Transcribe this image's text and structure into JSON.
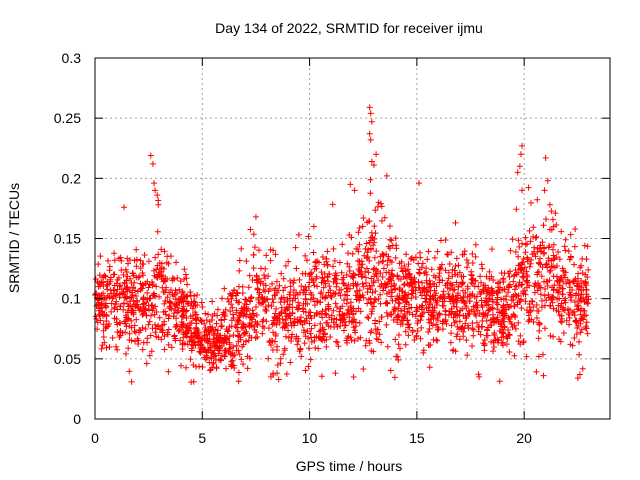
{
  "chart_data": {
    "type": "scatter",
    "title": "Day 134 of 2022, SRMTID for receiver ijmu",
    "xlabel": "GPS time / hours",
    "ylabel": "SRMTID / TECUs",
    "xlim": [
      0,
      24
    ],
    "ylim": [
      0,
      0.3
    ],
    "x_ticks": [
      0,
      5,
      10,
      15,
      20
    ],
    "y_ticks": [
      0,
      0.05,
      0.1,
      0.15,
      0.2,
      0.25,
      0.3
    ],
    "grid": true,
    "marker": "+",
    "series": [
      {
        "name": "SRMTID",
        "color": "#ff0000",
        "envelope": {
          "hours": [
            0.0,
            0.5,
            1.0,
            1.5,
            2.0,
            2.5,
            3.0,
            3.5,
            4.0,
            4.5,
            5.0,
            5.5,
            6.0,
            6.5,
            7.0,
            7.5,
            8.0,
            8.5,
            9.0,
            9.5,
            10.0,
            10.5,
            11.0,
            11.5,
            12.0,
            12.5,
            13.0,
            13.5,
            14.0,
            14.5,
            15.0,
            15.5,
            16.0,
            16.5,
            17.0,
            17.5,
            18.0,
            18.5,
            19.0,
            19.5,
            20.0,
            20.5,
            21.0,
            21.5,
            22.0,
            22.5,
            23.0
          ],
          "center": [
            0.1,
            0.095,
            0.098,
            0.097,
            0.1,
            0.095,
            0.11,
            0.09,
            0.088,
            0.078,
            0.065,
            0.062,
            0.068,
            0.075,
            0.09,
            0.1,
            0.1,
            0.08,
            0.085,
            0.09,
            0.095,
            0.092,
            0.098,
            0.095,
            0.095,
            0.11,
            0.12,
            0.11,
            0.1,
            0.095,
            0.1,
            0.1,
            0.098,
            0.098,
            0.1,
            0.098,
            0.09,
            0.09,
            0.085,
            0.105,
            0.11,
            0.115,
            0.12,
            0.11,
            0.11,
            0.095,
            0.1
          ],
          "spread": [
            0.018,
            0.022,
            0.025,
            0.025,
            0.025,
            0.025,
            0.03,
            0.022,
            0.022,
            0.02,
            0.015,
            0.015,
            0.018,
            0.022,
            0.03,
            0.025,
            0.025,
            0.025,
            0.025,
            0.025,
            0.025,
            0.025,
            0.025,
            0.025,
            0.03,
            0.03,
            0.032,
            0.03,
            0.028,
            0.025,
            0.025,
            0.025,
            0.025,
            0.025,
            0.025,
            0.025,
            0.022,
            0.022,
            0.022,
            0.028,
            0.03,
            0.03,
            0.032,
            0.028,
            0.028,
            0.025,
            0.025
          ]
        },
        "peaks": [
          {
            "x": 2.6,
            "y": 0.219
          },
          {
            "x": 2.7,
            "y": 0.212
          },
          {
            "x": 2.75,
            "y": 0.196
          },
          {
            "x": 2.8,
            "y": 0.19
          },
          {
            "x": 2.9,
            "y": 0.186
          },
          {
            "x": 2.95,
            "y": 0.178
          },
          {
            "x": 1.35,
            "y": 0.176
          },
          {
            "x": 7.5,
            "y": 0.168
          },
          {
            "x": 12.8,
            "y": 0.259
          },
          {
            "x": 12.85,
            "y": 0.254
          },
          {
            "x": 12.9,
            "y": 0.247
          },
          {
            "x": 12.8,
            "y": 0.237
          },
          {
            "x": 12.85,
            "y": 0.232
          },
          {
            "x": 12.9,
            "y": 0.214
          },
          {
            "x": 13.1,
            "y": 0.22
          },
          {
            "x": 13.0,
            "y": 0.211
          },
          {
            "x": 13.6,
            "y": 0.202
          },
          {
            "x": 11.9,
            "y": 0.195
          },
          {
            "x": 12.1,
            "y": 0.19
          },
          {
            "x": 15.1,
            "y": 0.196
          },
          {
            "x": 19.9,
            "y": 0.227
          },
          {
            "x": 19.85,
            "y": 0.22
          },
          {
            "x": 19.8,
            "y": 0.21
          },
          {
            "x": 19.7,
            "y": 0.205
          },
          {
            "x": 19.9,
            "y": 0.19
          },
          {
            "x": 21.0,
            "y": 0.217
          },
          {
            "x": 21.1,
            "y": 0.198
          },
          {
            "x": 20.95,
            "y": 0.19
          },
          {
            "x": 21.2,
            "y": 0.178
          },
          {
            "x": 16.8,
            "y": 0.163
          },
          {
            "x": 10.2,
            "y": 0.16
          },
          {
            "x": 9.5,
            "y": 0.153
          }
        ],
        "lows": [
          {
            "x": 4.6,
            "y": 0.031
          },
          {
            "x": 8.2,
            "y": 0.035
          },
          {
            "x": 17.9,
            "y": 0.035
          },
          {
            "x": 22.5,
            "y": 0.034
          },
          {
            "x": 20.9,
            "y": 0.036
          },
          {
            "x": 5.4,
            "y": 0.041
          },
          {
            "x": 8.3,
            "y": 0.038
          },
          {
            "x": 22.6,
            "y": 0.037
          }
        ]
      }
    ]
  }
}
